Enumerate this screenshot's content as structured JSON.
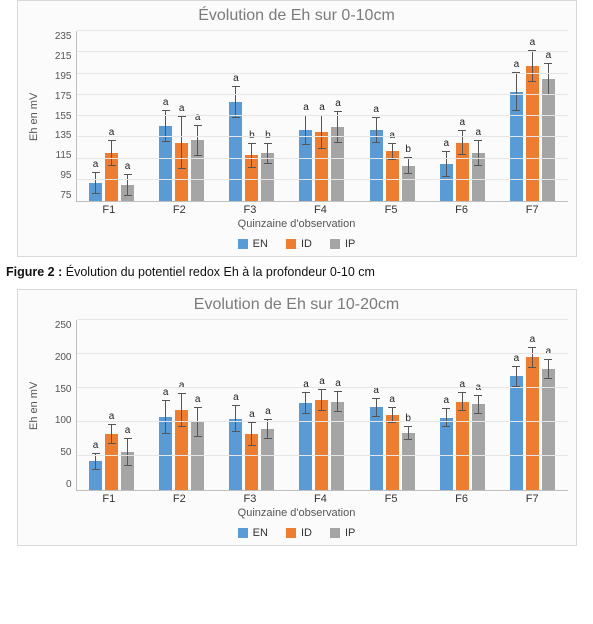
{
  "chart1": {
    "type": "bar",
    "title": "Évolution de Eh sur 0-10cm",
    "ylabel": "Eh en mV",
    "xlabel": "Quinzaine d'observation",
    "ymin": 75,
    "ymax": 235,
    "ytick_step": 20,
    "categories": [
      "F1",
      "F2",
      "F3",
      "F4",
      "F5",
      "F6",
      "F7"
    ],
    "series_colors": [
      "#5b9bd5",
      "#ed7d31",
      "#a5a5a5"
    ],
    "series_names": [
      "EN",
      "ID",
      "IP"
    ],
    "legend_position": "bottom",
    "background_color": "#fbfbfb",
    "grid_color": "#e6e6e6",
    "bar_width": 0.22,
    "label_fontsize": 10,
    "groups": [
      {
        "values": [
          92,
          120,
          90
        ],
        "errs": [
          10,
          12,
          10
        ],
        "labels": [
          "a",
          "a",
          "a"
        ]
      },
      {
        "values": [
          146,
          130,
          132
        ],
        "errs": [
          15,
          25,
          15
        ],
        "labels": [
          "a",
          "a",
          "a"
        ]
      },
      {
        "values": [
          168,
          118,
          120
        ],
        "errs": [
          15,
          12,
          10
        ],
        "labels": [
          "a",
          "b",
          "b"
        ]
      },
      {
        "values": [
          142,
          140,
          145
        ],
        "errs": [
          14,
          16,
          15
        ],
        "labels": [
          "a",
          "a",
          "a"
        ]
      },
      {
        "values": [
          142,
          122,
          108
        ],
        "errs": [
          12,
          8,
          8
        ],
        "labels": [
          "a",
          "a",
          "b"
        ]
      },
      {
        "values": [
          110,
          130,
          120
        ],
        "errs": [
          12,
          12,
          12
        ],
        "labels": [
          "a",
          "a",
          "a"
        ]
      },
      {
        "values": [
          178,
          202,
          190
        ],
        "errs": [
          18,
          15,
          15
        ],
        "labels": [
          "a",
          "a",
          "a"
        ]
      }
    ]
  },
  "caption": {
    "label": "Figure 2 :",
    "text": "Évolution du potentiel redox Eh à la profondeur 0-10 cm"
  },
  "chart2": {
    "type": "bar",
    "title": "Evolution de Eh sur 10-20cm",
    "ylabel": "Eh en mV",
    "xlabel": "Quinzaine d'observation",
    "ymin": 0,
    "ymax": 250,
    "ytick_step": 50,
    "categories": [
      "F1",
      "F2",
      "F3",
      "F4",
      "F5",
      "F6",
      "F7"
    ],
    "series_colors": [
      "#5b9bd5",
      "#ed7d31",
      "#a5a5a5"
    ],
    "series_names": [
      "EN",
      "ID",
      "IP"
    ],
    "legend_position": "bottom",
    "background_color": "#fbfbfb",
    "grid_color": "#e6e6e6",
    "bar_width": 0.22,
    "label_fontsize": 10,
    "groups": [
      {
        "values": [
          42,
          82,
          56
        ],
        "errs": [
          12,
          15,
          20
        ],
        "labels": [
          "a",
          "a",
          "a"
        ]
      },
      {
        "values": [
          108,
          118,
          100
        ],
        "errs": [
          25,
          25,
          22
        ],
        "labels": [
          "a",
          "a",
          "a"
        ]
      },
      {
        "values": [
          105,
          82,
          90
        ],
        "errs": [
          20,
          18,
          15
        ],
        "labels": [
          "a",
          "a",
          "a"
        ]
      },
      {
        "values": [
          128,
          132,
          130
        ],
        "errs": [
          16,
          16,
          16
        ],
        "labels": [
          "a",
          "a",
          "a"
        ]
      },
      {
        "values": [
          122,
          110,
          84
        ],
        "errs": [
          14,
          12,
          10
        ],
        "labels": [
          "a",
          "a",
          "b"
        ]
      },
      {
        "values": [
          106,
          130,
          126
        ],
        "errs": [
          14,
          14,
          14
        ],
        "labels": [
          "a",
          "a",
          "a"
        ]
      },
      {
        "values": [
          167,
          195,
          178
        ],
        "errs": [
          15,
          15,
          15
        ],
        "labels": [
          "a",
          "a",
          "a"
        ]
      }
    ]
  }
}
